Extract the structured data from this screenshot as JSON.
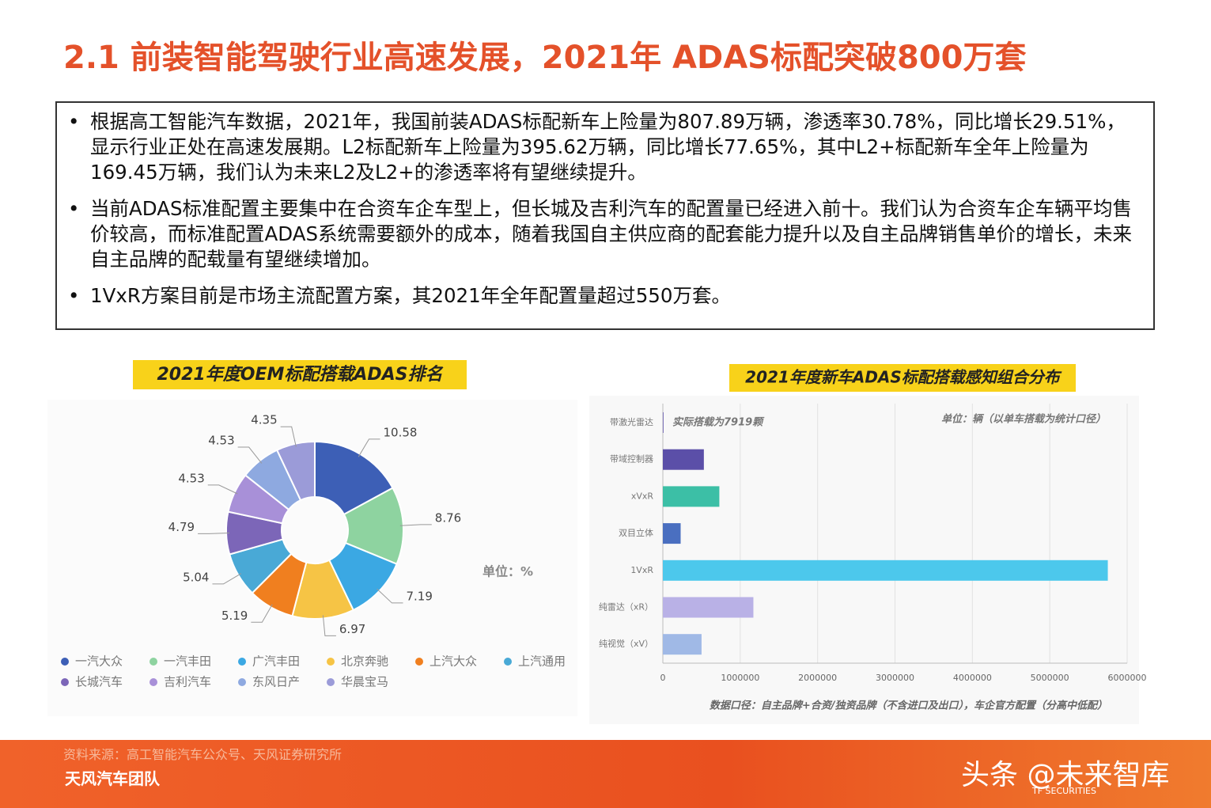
{
  "header": {
    "title": "2.1 前装智能驾驶行业高速发展，2021年 ADAS标配突破800万套"
  },
  "bullets": [
    "根据高工智能汽车数据，2021年，我国前装ADAS标配新车上险量为807.89万辆，渗透率30.78%，同比增长29.51%，显示行业正处在高速发展期。L2标配新车上险量为395.62万辆，同比增长77.65%，其中L2+标配新车全年上险量为169.45万辆，我们认为未来L2及L2+的渗透率将有望继续提升。",
    "当前ADAS标准配置主要集中在合资车企车型上，但长城及吉利汽车的配置量已经进入前十。我们认为合资车企车辆平均售价较高，而标准配置ADAS系统需要额外的成本，随着我国自主供应商的配套能力提升以及自主品牌销售单价的增长，未来自主品牌的配载量有望继续增加。",
    "1VxR方案目前是市场主流配置方案，其2021年全年配置量超过550万套。"
  ],
  "chart_data": [
    {
      "type": "donut",
      "title": "2021年度OEM标配搭载ADAS排名",
      "unit": "单位：%",
      "categories": [
        "一汽大众",
        "一汽丰田",
        "广汽丰田",
        "北京奔驰",
        "上汽大众",
        "上汽通用",
        "长城汽车",
        "吉利汽车",
        "东风日产",
        "华晨宝马"
      ],
      "values": [
        10.58,
        8.76,
        7.19,
        6.97,
        5.19,
        5.04,
        4.79,
        4.53,
        4.53,
        4.35
      ],
      "colors": [
        "#3d5fb6",
        "#8ed3a0",
        "#3ba8e3",
        "#f6c445",
        "#f07f1f",
        "#49a9d6",
        "#7c66b8",
        "#a890d8",
        "#8ea9e0",
        "#9b9bd8"
      ]
    },
    {
      "type": "hbar",
      "title": "2021年度新车ADAS标配搭载感知组合分布",
      "annotation": "实际搭载为7919颗",
      "unit": "单位：辆（以单车搭载为统计口径）",
      "note": "数据口径：自主品牌+合资/独资品牌（不含进口及出口），车企官方配置（分高中低配）",
      "categories": [
        "带激光雷达",
        "带域控制器",
        "xVxR",
        "双目立体",
        "1VxR",
        "纯雷达（xR）",
        "纯视觉（xV）"
      ],
      "values": [
        7919,
        530000,
        730000,
        230000,
        5750000,
        1170000,
        500000
      ],
      "colors": [
        "#5b4fa8",
        "#5b4fa8",
        "#3cbfa6",
        "#4a6fc0",
        "#4cc8ec",
        "#b9b1e6",
        "#a0b9e6"
      ],
      "xlim": [
        0,
        6000000
      ],
      "xticks": [
        0,
        1000000,
        2000000,
        3000000,
        4000000,
        5000000,
        6000000
      ],
      "grid": true
    }
  ],
  "footer": {
    "source": "资料来源：高工智能汽车公众号、天风证券研究所",
    "team": "天风汽车团队",
    "watermark": "头条 @未来智库",
    "brand": "TF SECURITIES"
  }
}
